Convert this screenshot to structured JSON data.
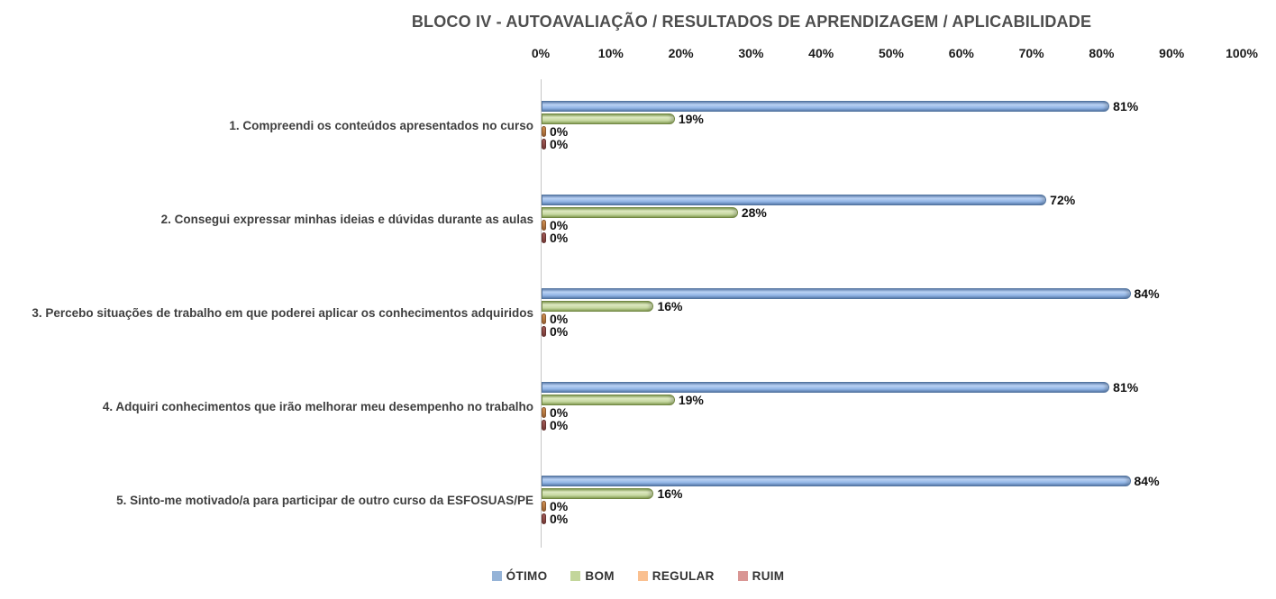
{
  "chart_data": {
    "type": "bar",
    "orientation": "horizontal",
    "title": "BLOCO IV - AUTOAVALIAÇÃO / RESULTADOS DE APRENDIZAGEM / APLICABILIDADE",
    "categories": [
      "1. Compreendi os conteúdos apresentados no curso",
      "2. Consegui expressar minhas ideias e dúvidas durante as aulas",
      "3. Percebo situações de trabalho em que poderei aplicar os conhecimentos adquiridos",
      "4. Adquiri conhecimentos que irão melhorar meu desempenho no trabalho",
      "5. Sinto-me motivado/a para participar de outro curso da ESFOSUAS/PE"
    ],
    "series": [
      {
        "name": "ÓTIMO",
        "color": "#95B3D7",
        "values": [
          81,
          72,
          84,
          81,
          84
        ]
      },
      {
        "name": "BOM",
        "color": "#C3D69B",
        "values": [
          19,
          28,
          16,
          19,
          16
        ]
      },
      {
        "name": "REGULAR",
        "color": "#FAC090",
        "values": [
          0,
          0,
          0,
          0,
          0
        ]
      },
      {
        "name": "RUIM",
        "color": "#D99694",
        "values": [
          0,
          0,
          0,
          0,
          0
        ]
      }
    ],
    "x_axis": {
      "position": "top",
      "min": 0,
      "max": 100,
      "tick_labels": [
        "0%",
        "10%",
        "20%",
        "30%",
        "40%",
        "50%",
        "60%",
        "70%",
        "80%",
        "90%",
        "100%"
      ]
    },
    "value_label_suffix": "%",
    "legend_position": "bottom",
    "grid": false,
    "axis_line_color": "#C6C6C6",
    "background": "#FFFFFF"
  }
}
